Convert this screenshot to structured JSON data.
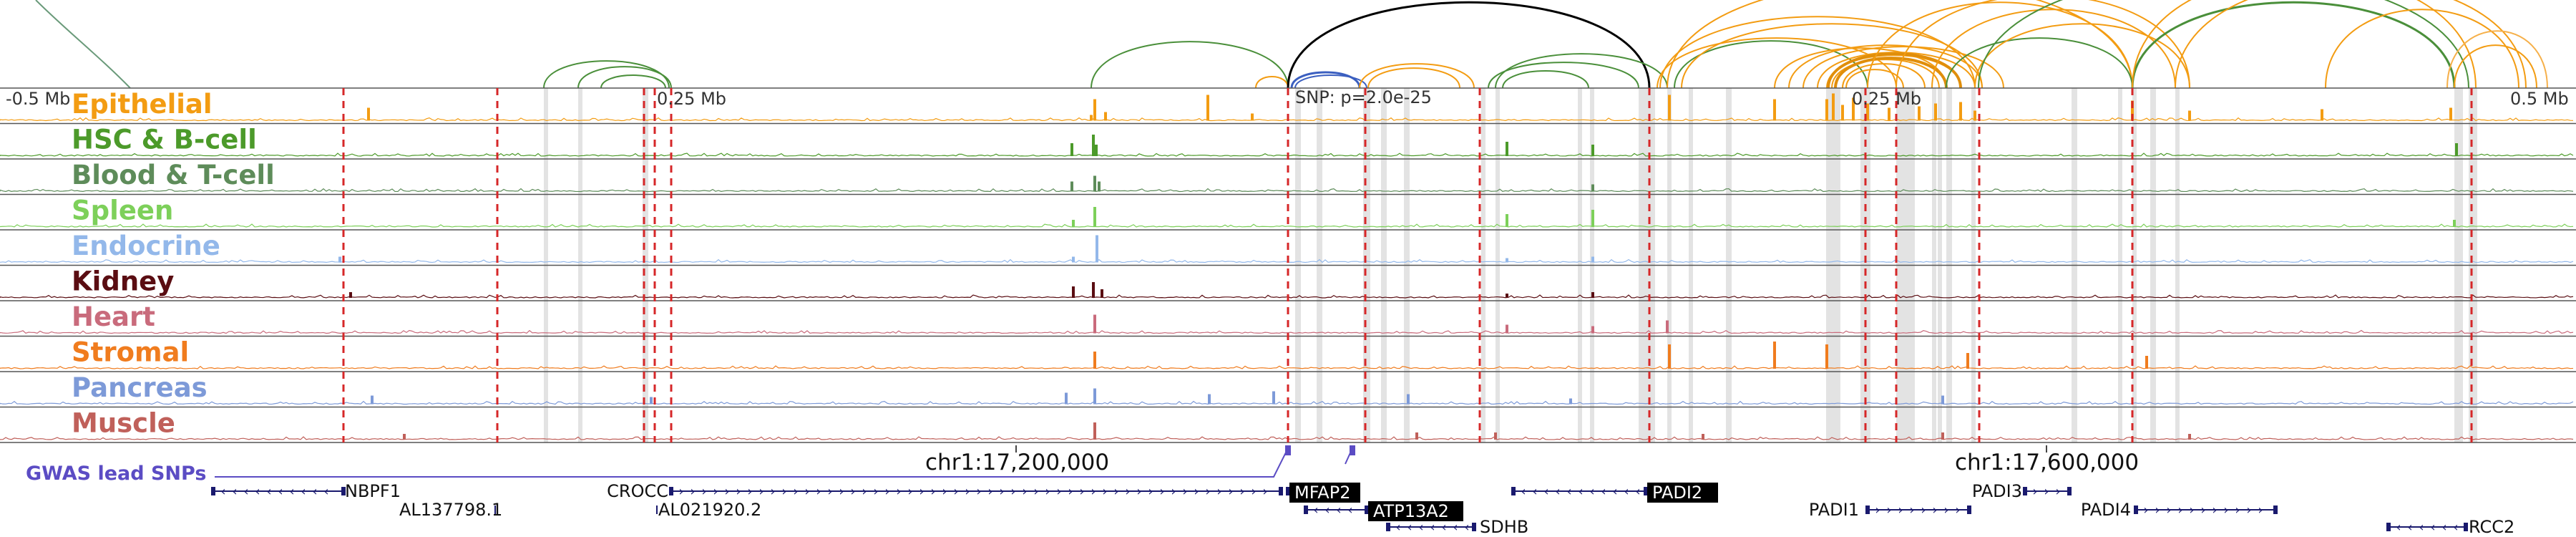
{
  "scale_labels": {
    "left": "-0.5 Mb",
    "mid_left": "0.25 Mb",
    "mid_right": "0.25 Mb",
    "right": "0.5 Mb"
  },
  "snp_label": "SNP: p=2.0e-25",
  "tracks": [
    {
      "name": "Epithelial",
      "color": "#f39c12"
    },
    {
      "name": "HSC & B-cell",
      "color": "#4c9a2a"
    },
    {
      "name": "Blood & T-cell",
      "color": "#5e8c5a"
    },
    {
      "name": "Spleen",
      "color": "#7dd05a"
    },
    {
      "name": "Endocrine",
      "color": "#93b8ea"
    },
    {
      "name": "Kidney",
      "color": "#5a0d12"
    },
    {
      "name": "Heart",
      "color": "#c96b7c"
    },
    {
      "name": "Stromal",
      "color": "#f07c1e"
    },
    {
      "name": "Pancreas",
      "color": "#7d9ad8"
    },
    {
      "name": "Muscle",
      "color": "#c0605a"
    }
  ],
  "coordinates": {
    "left": "chr1:17,200,000",
    "right": "chr1:17,600,000"
  },
  "gwas_label": "GWAS lead SNPs",
  "genes": [
    {
      "name": "NBPF1",
      "highlight": false
    },
    {
      "name": "AL137798.1",
      "highlight": false
    },
    {
      "name": "CROCC",
      "highlight": false
    },
    {
      "name": "AL021920.2",
      "highlight": false
    },
    {
      "name": "MFAP2",
      "highlight": true
    },
    {
      "name": "ATP13A2",
      "highlight": true
    },
    {
      "name": "SDHB",
      "highlight": false
    },
    {
      "name": "PADI2",
      "highlight": true
    },
    {
      "name": "PADI1",
      "highlight": false
    },
    {
      "name": "PADI3",
      "highlight": false
    },
    {
      "name": "PADI4",
      "highlight": false
    },
    {
      "name": "RCC2",
      "highlight": false
    }
  ],
  "colors": {
    "gwas": "#5b4cc4",
    "loop_black": "#000000",
    "loop_blue": "#3b5fc0",
    "red_dash": "#d62728",
    "gene": "#1a1a6e"
  }
}
